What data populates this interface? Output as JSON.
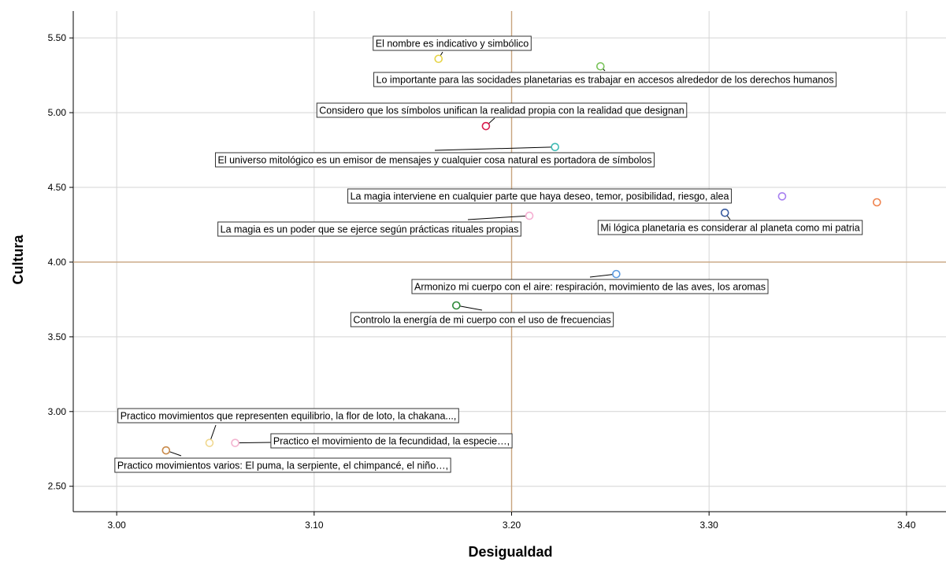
{
  "chart_data": {
    "type": "scatter",
    "xlabel": "Desigualdad",
    "ylabel": "Cultura",
    "xlim": [
      2.978,
      3.42
    ],
    "ylim": [
      2.33,
      5.68
    ],
    "x_ticks": [
      3.0,
      3.1,
      3.2,
      3.3,
      3.4
    ],
    "y_ticks": [
      2.5,
      3.0,
      3.5,
      4.0,
      4.5,
      5.0,
      5.5
    ],
    "x_tick_labels": [
      "3.00",
      "3.10",
      "3.20",
      "3.30",
      "3.40"
    ],
    "y_tick_labels": [
      "2.50",
      "3.00",
      "3.50",
      "4.00",
      "4.50",
      "5.00",
      "5.50"
    ],
    "grid": true,
    "reference_lines": {
      "x": 3.2,
      "y": 4.0,
      "color": "#c8a47e"
    },
    "points": [
      {
        "label": "El nombre es indicativo y simbólico",
        "x": 3.163,
        "y": 5.36,
        "color": "#e6d447"
      },
      {
        "label": "Lo importante para las socidades planetarias es trabajar en accesos alrededor de los derechos humanos",
        "x": 3.245,
        "y": 5.31,
        "color": "#79c35a"
      },
      {
        "label": "Considero que los símbolos unifican la realidad propia con la realidad que designan",
        "x": 3.187,
        "y": 4.91,
        "color": "#d81d4e"
      },
      {
        "label": "El universo mitológico es un emisor de mensajes y cualquier cosa natural es portadora de símbolos",
        "x": 3.222,
        "y": 4.77,
        "color": "#3dbab4"
      },
      {
        "label": "La magia interviene en cualquier parte que haya deseo, temor, posibilidad, riesgo, alea",
        "x": 3.337,
        "y": 4.44,
        "color": "#a77ff0"
      },
      {
        "label": "",
        "x": 3.385,
        "y": 4.4,
        "color": "#ef8450"
      },
      {
        "label": "La magia es un poder que se ejerce según prácticas rituales propias",
        "x": 3.209,
        "y": 4.31,
        "color": "#f5aed2"
      },
      {
        "label": "Mi lógica planetaria es considerar al planeta como mi patria",
        "x": 3.308,
        "y": 4.33,
        "color": "#3a5ca0"
      },
      {
        "label": "Armonizo mi cuerpo con el aire: respiración, movimiento de las aves, los aromas",
        "x": 3.253,
        "y": 3.92,
        "color": "#5b9ae0"
      },
      {
        "label": "Controlo la energía de mi cuerpo con el uso de frecuencias",
        "x": 3.172,
        "y": 3.71,
        "color": "#2e8a3a"
      },
      {
        "label": "Practico movimientos que representen equilibrio, la flor de loto, la chakana...,",
        "x": 3.047,
        "y": 2.79,
        "color": "#f0d890"
      },
      {
        "label": "Practico el movimiento de la fecundidad, la especie…,",
        "x": 3.06,
        "y": 2.79,
        "color": "#f3b3cf"
      },
      {
        "label": "Practico movimientos varios: El puma, la serpiente, el chimpancé, el niño…,",
        "x": 3.025,
        "y": 2.74,
        "color": "#c98a4a"
      }
    ]
  }
}
